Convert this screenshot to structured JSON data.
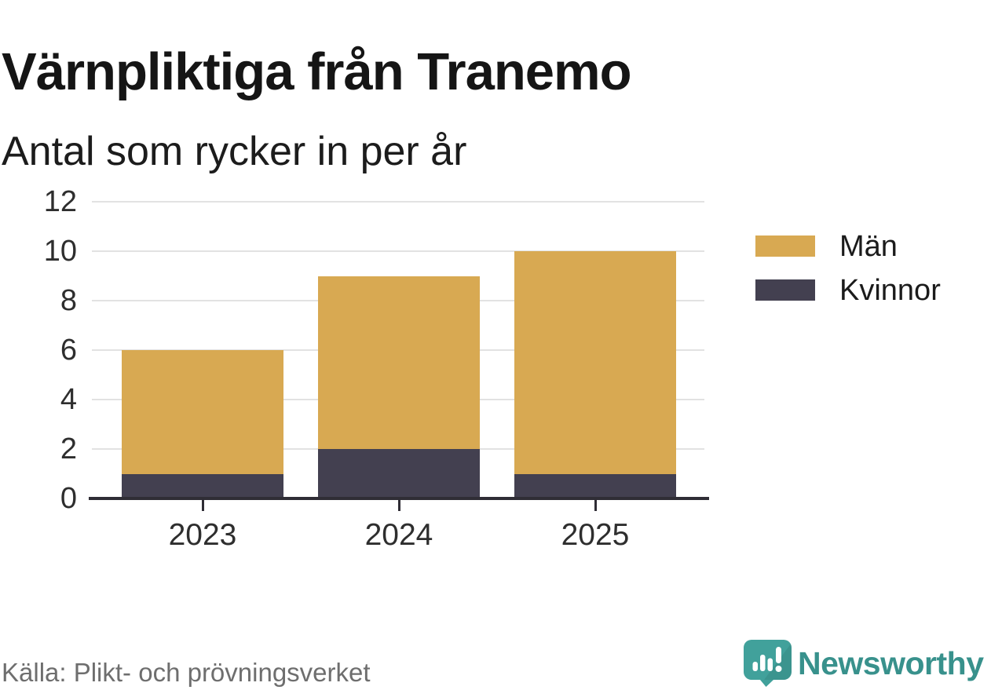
{
  "chart_data": {
    "type": "bar",
    "stacked": true,
    "title": "Värnpliktiga från Tranemo",
    "subtitle": "Antal som rycker in per år",
    "categories": [
      "2023",
      "2024",
      "2025"
    ],
    "series": [
      {
        "name": "Män",
        "color": "#D8A952",
        "values": [
          5,
          7,
          9
        ]
      },
      {
        "name": "Kvinnor",
        "color": "#434050",
        "values": [
          1,
          2,
          1
        ]
      }
    ],
    "stack_order_bottom_to_top": [
      "Kvinnor",
      "Män"
    ],
    "totals": [
      6,
      9,
      10
    ],
    "ylim": [
      0,
      12
    ],
    "yticks": [
      0,
      2,
      4,
      6,
      8,
      10,
      12
    ],
    "grid": true,
    "legend_position": "right",
    "source": "Källa: Plikt- och prövningsverket"
  },
  "colors": {
    "grid": "#E2E2E2",
    "axis": "#2F2D35",
    "tick_label": "#2E2E2E",
    "title": "#151515",
    "subtitle": "#1C1C1C",
    "source": "#6E6E6E",
    "brand_teal": "#41A19B",
    "brand_text": "#38918C"
  },
  "branding": {
    "wordmark": "Newsworthy",
    "icon": "newsworthy-speech-bubble-chart-icon"
  }
}
